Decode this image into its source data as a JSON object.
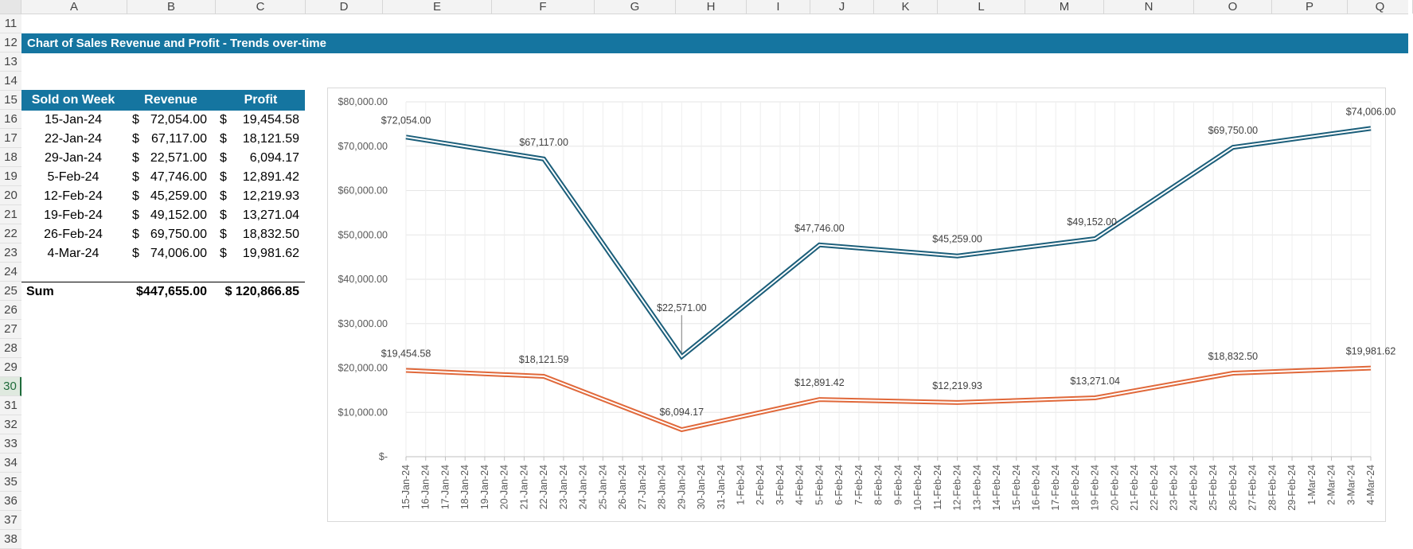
{
  "sheet": {
    "columns": [
      "A",
      "B",
      "C",
      "D",
      "E",
      "F",
      "G",
      "H",
      "I",
      "J",
      "K",
      "L",
      "M",
      "N",
      "O",
      "P",
      "Q"
    ],
    "rows": [
      "11",
      "12",
      "13",
      "14",
      "15",
      "16",
      "17",
      "18",
      "19",
      "20",
      "21",
      "22",
      "23",
      "24",
      "25",
      "26",
      "27",
      "28",
      "29",
      "30",
      "31",
      "32",
      "33",
      "34",
      "35",
      "36",
      "37",
      "38"
    ],
    "selected_row": "30",
    "title": "Chart of Sales Revenue and Profit - Trends over-time"
  },
  "table": {
    "headers": [
      "Sold on Week",
      "Revenue",
      "Profit"
    ],
    "rows": [
      {
        "week": "15-Jan-24",
        "revenue": "72,054.00",
        "profit": "19,454.58"
      },
      {
        "week": "22-Jan-24",
        "revenue": "67,117.00",
        "profit": "18,121.59"
      },
      {
        "week": "29-Jan-24",
        "revenue": "22,571.00",
        "profit": "6,094.17"
      },
      {
        "week": "5-Feb-24",
        "revenue": "47,746.00",
        "profit": "12,891.42"
      },
      {
        "week": "12-Feb-24",
        "revenue": "45,259.00",
        "profit": "12,219.93"
      },
      {
        "week": "19-Feb-24",
        "revenue": "49,152.00",
        "profit": "13,271.04"
      },
      {
        "week": "26-Feb-24",
        "revenue": "69,750.00",
        "profit": "18,832.50"
      },
      {
        "week": "4-Mar-24",
        "revenue": "74,006.00",
        "profit": "19,981.62"
      }
    ],
    "currency_symbol": "$",
    "sum_label": "Sum",
    "sum_revenue": "$447,655.00",
    "sum_profit": "$ 120,866.85"
  },
  "chart_data": {
    "type": "line",
    "x_dates": [
      "2024-01-15",
      "2024-01-22",
      "2024-01-29",
      "2024-02-05",
      "2024-02-12",
      "2024-02-19",
      "2024-02-26",
      "2024-03-04"
    ],
    "x_tick_labels": [
      "15-Jan-24",
      "16-Jan-24",
      "17-Jan-24",
      "18-Jan-24",
      "19-Jan-24",
      "20-Jan-24",
      "21-Jan-24",
      "22-Jan-24",
      "23-Jan-24",
      "24-Jan-24",
      "25-Jan-24",
      "26-Jan-24",
      "27-Jan-24",
      "28-Jan-24",
      "29-Jan-24",
      "30-Jan-24",
      "31-Jan-24",
      "1-Feb-24",
      "2-Feb-24",
      "3-Feb-24",
      "4-Feb-24",
      "5-Feb-24",
      "6-Feb-24",
      "7-Feb-24",
      "8-Feb-24",
      "9-Feb-24",
      "10-Feb-24",
      "11-Feb-24",
      "12-Feb-24",
      "13-Feb-24",
      "14-Feb-24",
      "15-Feb-24",
      "16-Feb-24",
      "17-Feb-24",
      "18-Feb-24",
      "19-Feb-24",
      "20-Feb-24",
      "21-Feb-24",
      "22-Feb-24",
      "23-Feb-24",
      "24-Feb-24",
      "25-Feb-24",
      "26-Feb-24",
      "27-Feb-24",
      "28-Feb-24",
      "29-Feb-24",
      "1-Mar-24",
      "2-Mar-24",
      "3-Mar-24",
      "4-Mar-24"
    ],
    "series": [
      {
        "values": [
          72054,
          67117,
          22571,
          47746,
          45259,
          49152,
          69750,
          74006
        ],
        "labels": [
          "$72,054.00",
          "$67,117.00",
          "$22,571.00",
          "$47,746.00",
          "$45,259.00",
          "$49,152.00",
          "$69,750.00",
          "$74,006.00"
        ],
        "color": "#1b5e7a"
      },
      {
        "values": [
          19454.58,
          18121.59,
          6094.17,
          12891.42,
          12219.93,
          13271.04,
          18832.5,
          19981.62
        ],
        "labels": [
          "$19,454.58",
          "$18,121.59",
          "$6,094.17",
          "$12,891.42",
          "$12,219.93",
          "$13,271.04",
          "$18,832.50",
          "$19,981.62"
        ],
        "color": "#e0683a"
      }
    ],
    "y_tick_labels": [
      "$-",
      "$10,000.00",
      "$20,000.00",
      "$30,000.00",
      "$40,000.00",
      "$50,000.00",
      "$60,000.00",
      "$70,000.00",
      "$80,000.00"
    ],
    "ylim": [
      0,
      80000
    ],
    "grid": true
  }
}
